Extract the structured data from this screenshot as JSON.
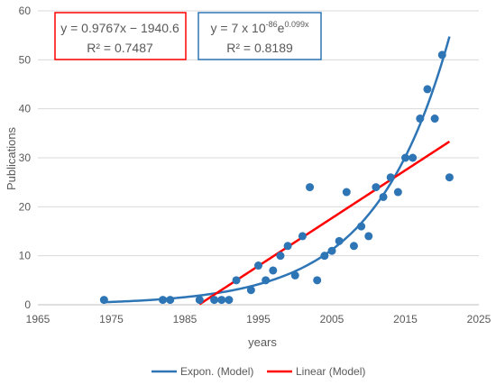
{
  "chart_data": {
    "type": "scatter",
    "xlabel": "years",
    "ylabel": "Publications",
    "xlim": [
      1965,
      2025
    ],
    "ylim": [
      0,
      60
    ],
    "xticks": [
      "1965",
      "1975",
      "1985",
      "1995",
      "2005",
      "2015",
      "2025"
    ],
    "yticks": [
      "0",
      "10",
      "20",
      "30",
      "40",
      "50",
      "60"
    ],
    "grid": "horizontal",
    "legend_position": "bottom",
    "marker_color": "#2e75b6",
    "points": [
      {
        "x": 1974,
        "y": 1
      },
      {
        "x": 1982,
        "y": 1
      },
      {
        "x": 1983,
        "y": 1
      },
      {
        "x": 1987,
        "y": 1
      },
      {
        "x": 1989,
        "y": 1
      },
      {
        "x": 1990,
        "y": 1
      },
      {
        "x": 1991,
        "y": 1
      },
      {
        "x": 1992,
        "y": 5
      },
      {
        "x": 1994,
        "y": 3
      },
      {
        "x": 1995,
        "y": 8
      },
      {
        "x": 1996,
        "y": 5
      },
      {
        "x": 1997,
        "y": 7
      },
      {
        "x": 1998,
        "y": 10
      },
      {
        "x": 1999,
        "y": 12
      },
      {
        "x": 2000,
        "y": 6
      },
      {
        "x": 2001,
        "y": 14
      },
      {
        "x": 2002,
        "y": 24
      },
      {
        "x": 2003,
        "y": 5
      },
      {
        "x": 2004,
        "y": 10
      },
      {
        "x": 2005,
        "y": 11
      },
      {
        "x": 2006,
        "y": 13
      },
      {
        "x": 2007,
        "y": 23
      },
      {
        "x": 2008,
        "y": 12
      },
      {
        "x": 2009,
        "y": 16
      },
      {
        "x": 2010,
        "y": 14
      },
      {
        "x": 2011,
        "y": 24
      },
      {
        "x": 2012,
        "y": 22
      },
      {
        "x": 2013,
        "y": 26
      },
      {
        "x": 2014,
        "y": 23
      },
      {
        "x": 2015,
        "y": 30
      },
      {
        "x": 2016,
        "y": 30
      },
      {
        "x": 2017,
        "y": 38
      },
      {
        "x": 2018,
        "y": 44
      },
      {
        "x": 2019,
        "y": 38
      },
      {
        "x": 2020,
        "y": 51
      },
      {
        "x": 2021,
        "y": 26
      }
    ],
    "series": [
      {
        "name": "Expon. (Model)",
        "color": "#2e75b6",
        "model": "exponential",
        "coefficient": 7e-86,
        "rate": 0.099,
        "x_range": [
          1974,
          2021
        ]
      },
      {
        "name": "Linear (Model)",
        "color": "#ff0000",
        "model": "linear",
        "slope": 0.9767,
        "intercept": -1940.6,
        "x_range": [
          1987,
          2021
        ]
      }
    ],
    "annotations": {
      "linear": {
        "equation": "y = 0.9767x − 1940.6",
        "r2": "R² = 0.7487",
        "border_color": "#ff0000"
      },
      "exponential": {
        "equation_base": "y = 7 x 10",
        "equation_exp1": "-86",
        "equation_mid": "e",
        "equation_exp2": "0.099x",
        "r2": "R² = 0.8189",
        "border_color": "#2e75b6"
      }
    }
  }
}
